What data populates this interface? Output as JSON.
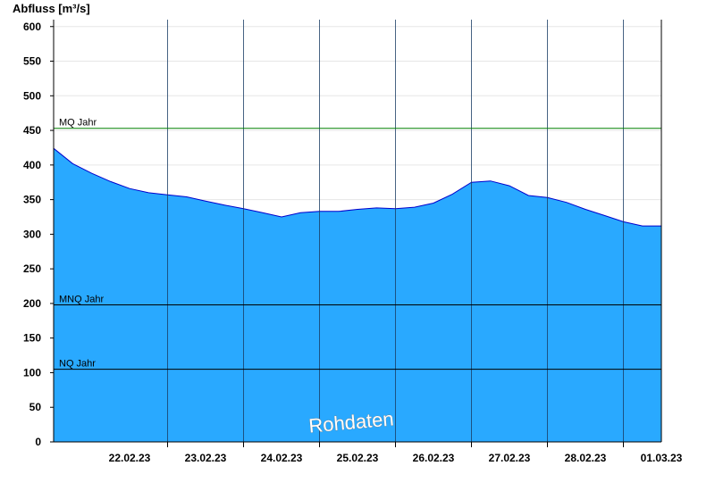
{
  "chart_data": {
    "type": "area",
    "ylabel": "Abfluss [m³/s]",
    "ylim": [
      0,
      610
    ],
    "yticks": [
      0,
      50,
      100,
      150,
      200,
      250,
      300,
      350,
      400,
      450,
      500,
      550,
      600
    ],
    "xlim": [
      "21.02.23 12:00",
      "01.03.23 12:00"
    ],
    "xticks": [
      "22.02.23",
      "23.02.23",
      "24.02.23",
      "25.02.23",
      "26.02.23",
      "27.02.23",
      "28.02.23",
      "01.03.23"
    ],
    "watermark": "Rohdaten",
    "reference_lines": [
      {
        "name": "MQ Jahr",
        "value": 453,
        "color": "#008000"
      },
      {
        "name": "MNQ Jahr",
        "value": 198,
        "color": "#000000"
      },
      {
        "name": "NQ Jahr",
        "value": 105,
        "color": "#000000"
      }
    ],
    "series": [
      {
        "color": "#29a9ff",
        "x": [
          "21.02.23 12:00",
          "21.02.23 18:00",
          "22.02.23 00:00",
          "22.02.23 06:00",
          "22.02.23 12:00",
          "22.02.23 18:00",
          "23.02.23 00:00",
          "23.02.23 06:00",
          "23.02.23 12:00",
          "23.02.23 18:00",
          "24.02.23 00:00",
          "24.02.23 06:00",
          "24.02.23 12:00",
          "24.02.23 18:00",
          "25.02.23 00:00",
          "25.02.23 06:00",
          "25.02.23 12:00",
          "25.02.23 18:00",
          "26.02.23 00:00",
          "26.02.23 06:00",
          "26.02.23 12:00",
          "26.02.23 18:00",
          "27.02.23 00:00",
          "27.02.23 06:00",
          "27.02.23 12:00",
          "27.02.23 18:00",
          "28.02.23 00:00",
          "28.02.23 06:00",
          "28.02.23 12:00",
          "28.02.23 18:00",
          "01.03.23 00:00",
          "01.03.23 06:00",
          "01.03.23 12:00"
        ],
        "values": [
          424,
          402,
          388,
          376,
          366,
          360,
          357,
          354,
          348,
          342,
          337,
          331,
          325,
          331,
          333,
          333,
          336,
          338,
          337,
          339,
          345,
          358,
          375,
          377,
          370,
          356,
          353,
          346,
          336,
          327,
          318,
          312,
          312
        ]
      }
    ]
  }
}
